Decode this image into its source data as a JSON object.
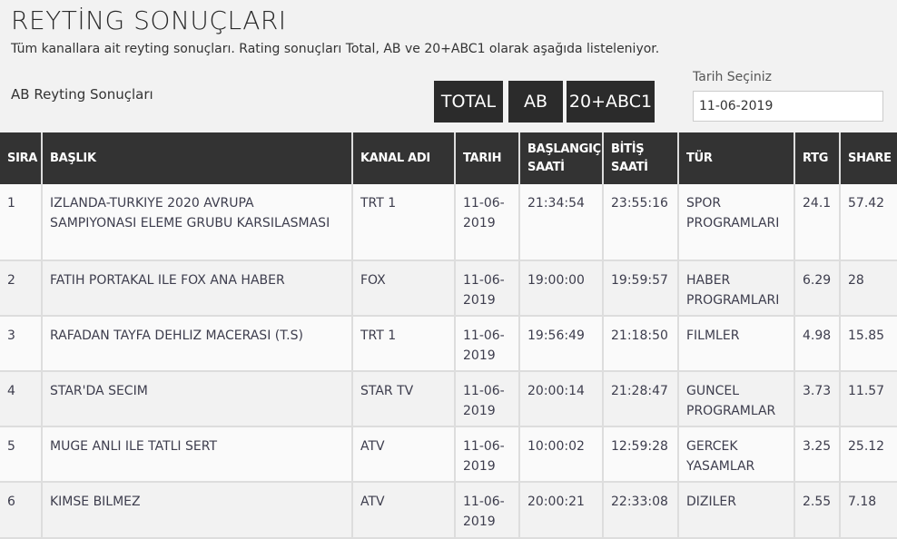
{
  "header": {
    "title": "REYTİNG SONUÇLARI",
    "description": "Tüm kanallara ait reyting sonuçları. Rating sonuçları Total, AB ve 20+ABC1 olarak aşağıda listeleniyor.",
    "subtitle": "AB Reyting Sonuçları"
  },
  "filters": {
    "buttons": [
      "TOTAL",
      "AB",
      "20+ABC1"
    ],
    "date_label": "Tarih Seçiniz",
    "date_value": "11-06-2019"
  },
  "table": {
    "columns": [
      "SIRA",
      "BAŞLIK",
      "KANAL ADI",
      "TARIH",
      "BAŞLANGIÇ SAATİ",
      "BİTİŞ SAATİ",
      "TÜR",
      "RTG",
      "SHARE"
    ],
    "rows": [
      [
        "1",
        "IZLANDA-TURKIYE 2020 AVRUPA SAMPIYONASI ELEME GRUBU KARSILASMASI",
        "TRT 1",
        "11-06-2019",
        "21:34:54",
        "23:55:16",
        "SPOR PROGRAMLARI",
        "24.1",
        "57.42"
      ],
      [
        "2",
        "FATIH PORTAKAL ILE FOX ANA HABER",
        "FOX",
        "11-06-2019",
        "19:00:00",
        "19:59:57",
        "HABER PROGRAMLARI",
        "6.29",
        "28"
      ],
      [
        "3",
        "RAFADAN TAYFA DEHLIZ MACERASI (T.S)",
        "TRT 1",
        "11-06-2019",
        "19:56:49",
        "21:18:50",
        "FILMLER",
        "4.98",
        "15.85"
      ],
      [
        "4",
        "STAR'DA SECIM",
        "STAR TV",
        "11-06-2019",
        "20:00:14",
        "21:28:47",
        "GUNCEL PROGRAMLAR",
        "3.73",
        "11.57"
      ],
      [
        "5",
        "MUGE ANLI ILE TATLI SERT",
        "ATV",
        "11-06-2019",
        "10:00:02",
        "12:59:28",
        "GERCEK YASAMLAR",
        "3.25",
        "25.12"
      ],
      [
        "6",
        "KIMSE BILMEZ",
        "ATV",
        "11-06-2019",
        "20:00:21",
        "22:33:08",
        "DIZILER",
        "2.55",
        "7.18"
      ]
    ]
  }
}
